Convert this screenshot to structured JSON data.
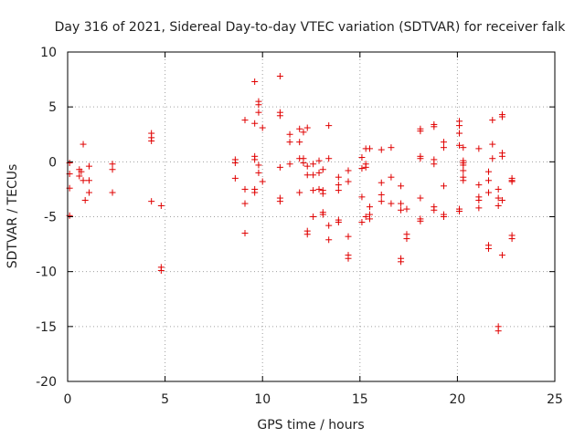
{
  "chart_data": {
    "type": "scatter",
    "title": "Day 316 of 2021, Sidereal Day-to-day VTEC variation (SDTVAR) for receiver falk",
    "xlabel": "GPS time / hours",
    "ylabel": "SDTVAR / TECUs",
    "xlim": [
      0,
      25
    ],
    "ylim": [
      -20,
      10
    ],
    "xticks": [
      0,
      5,
      10,
      15,
      20,
      25
    ],
    "yticks": [
      -20,
      -15,
      -10,
      -5,
      0,
      5,
      10
    ],
    "grid": true,
    "marker": "+",
    "marker_color": "#e00000",
    "series": [
      {
        "name": "SDTVAR",
        "points": [
          [
            0.1,
            -0.1
          ],
          [
            0.1,
            -1.1
          ],
          [
            0.1,
            -2.4
          ],
          [
            0.1,
            -4.9
          ],
          [
            0.6,
            -0.7
          ],
          [
            0.6,
            -1.3
          ],
          [
            0.7,
            -0.9
          ],
          [
            0.8,
            1.6
          ],
          [
            0.8,
            -1.7
          ],
          [
            0.9,
            -3.5
          ],
          [
            1.1,
            -0.4
          ],
          [
            1.1,
            -1.7
          ],
          [
            1.1,
            -2.8
          ],
          [
            2.3,
            -0.2
          ],
          [
            2.3,
            -0.7
          ],
          [
            2.3,
            -2.8
          ],
          [
            4.3,
            2.6
          ],
          [
            4.3,
            2.2
          ],
          [
            4.3,
            1.9
          ],
          [
            4.3,
            -3.6
          ],
          [
            4.8,
            -4.0
          ],
          [
            4.8,
            -9.6
          ],
          [
            4.8,
            -9.9
          ],
          [
            8.6,
            0.2
          ],
          [
            8.6,
            -0.1
          ],
          [
            8.6,
            -1.5
          ],
          [
            9.1,
            3.8
          ],
          [
            9.1,
            -2.5
          ],
          [
            9.1,
            -3.8
          ],
          [
            9.1,
            -6.5
          ],
          [
            9.6,
            7.3
          ],
          [
            9.6,
            3.5
          ],
          [
            9.6,
            0.5
          ],
          [
            9.6,
            0.2
          ],
          [
            9.6,
            -2.5
          ],
          [
            9.6,
            -2.8
          ],
          [
            9.8,
            5.5
          ],
          [
            9.8,
            5.2
          ],
          [
            9.8,
            4.5
          ],
          [
            9.8,
            -0.3
          ],
          [
            9.8,
            -1.0
          ],
          [
            10.0,
            3.1
          ],
          [
            10.0,
            -1.8
          ],
          [
            10.9,
            7.8
          ],
          [
            10.9,
            4.5
          ],
          [
            10.9,
            4.2
          ],
          [
            10.9,
            -0.5
          ],
          [
            10.9,
            -3.3
          ],
          [
            10.9,
            -3.6
          ],
          [
            11.4,
            2.5
          ],
          [
            11.4,
            1.8
          ],
          [
            11.4,
            -0.2
          ],
          [
            11.9,
            3.0
          ],
          [
            11.9,
            1.8
          ],
          [
            11.9,
            0.3
          ],
          [
            11.9,
            -2.8
          ],
          [
            12.1,
            2.7
          ],
          [
            12.1,
            0.3
          ],
          [
            12.1,
            -0.1
          ],
          [
            12.3,
            3.1
          ],
          [
            12.3,
            -0.4
          ],
          [
            12.3,
            -1.2
          ],
          [
            12.3,
            -6.3
          ],
          [
            12.3,
            -6.6
          ],
          [
            12.6,
            -0.2
          ],
          [
            12.6,
            -1.2
          ],
          [
            12.6,
            -2.6
          ],
          [
            12.6,
            -5.0
          ],
          [
            12.9,
            0.1
          ],
          [
            12.9,
            -1.0
          ],
          [
            12.9,
            -2.5
          ],
          [
            13.1,
            -0.7
          ],
          [
            13.1,
            -2.6
          ],
          [
            13.1,
            -2.9
          ],
          [
            13.1,
            -4.6
          ],
          [
            13.1,
            -4.8
          ],
          [
            13.4,
            3.3
          ],
          [
            13.4,
            0.3
          ],
          [
            13.4,
            -5.8
          ],
          [
            13.4,
            -7.1
          ],
          [
            13.9,
            -1.4
          ],
          [
            13.9,
            -2.1
          ],
          [
            13.9,
            -2.6
          ],
          [
            13.9,
            -5.3
          ],
          [
            13.9,
            -5.5
          ],
          [
            14.4,
            -0.8
          ],
          [
            14.4,
            -1.8
          ],
          [
            14.4,
            -6.8
          ],
          [
            14.4,
            -8.5
          ],
          [
            14.4,
            -8.8
          ],
          [
            15.1,
            0.4
          ],
          [
            15.1,
            -0.6
          ],
          [
            15.1,
            -3.2
          ],
          [
            15.1,
            -5.5
          ],
          [
            15.3,
            1.2
          ],
          [
            15.3,
            -0.2
          ],
          [
            15.3,
            -0.5
          ],
          [
            15.3,
            -5.0
          ],
          [
            15.5,
            1.2
          ],
          [
            15.5,
            -4.1
          ],
          [
            15.5,
            -4.8
          ],
          [
            15.5,
            -5.2
          ],
          [
            16.1,
            1.1
          ],
          [
            16.1,
            -1.9
          ],
          [
            16.1,
            -3.0
          ],
          [
            16.1,
            -3.6
          ],
          [
            16.6,
            1.3
          ],
          [
            16.6,
            -1.4
          ],
          [
            16.6,
            -3.8
          ],
          [
            17.1,
            -2.2
          ],
          [
            17.1,
            -3.8
          ],
          [
            17.1,
            -4.4
          ],
          [
            17.1,
            -8.8
          ],
          [
            17.1,
            -9.1
          ],
          [
            17.4,
            -4.3
          ],
          [
            17.4,
            -6.6
          ],
          [
            17.4,
            -7.0
          ],
          [
            18.1,
            3.0
          ],
          [
            18.1,
            2.8
          ],
          [
            18.1,
            0.5
          ],
          [
            18.1,
            0.3
          ],
          [
            18.1,
            -3.3
          ],
          [
            18.1,
            -5.2
          ],
          [
            18.1,
            -5.4
          ],
          [
            18.8,
            3.4
          ],
          [
            18.8,
            3.2
          ],
          [
            18.8,
            0.2
          ],
          [
            18.8,
            -0.2
          ],
          [
            18.8,
            -4.1
          ],
          [
            18.8,
            -4.4
          ],
          [
            19.3,
            1.8
          ],
          [
            19.3,
            1.3
          ],
          [
            19.3,
            -2.2
          ],
          [
            19.3,
            -4.8
          ],
          [
            19.3,
            -5.0
          ],
          [
            20.1,
            3.7
          ],
          [
            20.1,
            3.3
          ],
          [
            20.1,
            2.6
          ],
          [
            20.1,
            1.5
          ],
          [
            20.1,
            -4.3
          ],
          [
            20.1,
            -4.5
          ],
          [
            20.3,
            1.3
          ],
          [
            20.3,
            0.1
          ],
          [
            20.3,
            -0.1
          ],
          [
            20.3,
            -0.3
          ],
          [
            20.3,
            -0.8
          ],
          [
            20.3,
            -1.4
          ],
          [
            20.3,
            -1.7
          ],
          [
            21.1,
            1.2
          ],
          [
            21.1,
            -2.1
          ],
          [
            21.1,
            -3.2
          ],
          [
            21.1,
            -3.5
          ],
          [
            21.1,
            -4.2
          ],
          [
            21.6,
            -0.9
          ],
          [
            21.6,
            -1.7
          ],
          [
            21.6,
            -2.8
          ],
          [
            21.6,
            -7.6
          ],
          [
            21.6,
            -7.9
          ],
          [
            21.8,
            3.8
          ],
          [
            21.8,
            1.6
          ],
          [
            21.8,
            0.3
          ],
          [
            22.1,
            -2.5
          ],
          [
            22.1,
            -3.3
          ],
          [
            22.1,
            -4.0
          ],
          [
            22.1,
            -15.0
          ],
          [
            22.1,
            -15.4
          ],
          [
            22.3,
            4.1
          ],
          [
            22.3,
            4.3
          ],
          [
            22.3,
            0.8
          ],
          [
            22.3,
            0.5
          ],
          [
            22.3,
            -3.5
          ],
          [
            22.3,
            -8.5
          ],
          [
            22.8,
            -1.5
          ],
          [
            22.8,
            -1.7
          ],
          [
            22.8,
            -1.8
          ],
          [
            22.8,
            -6.7
          ],
          [
            22.8,
            -7.0
          ]
        ]
      }
    ]
  }
}
